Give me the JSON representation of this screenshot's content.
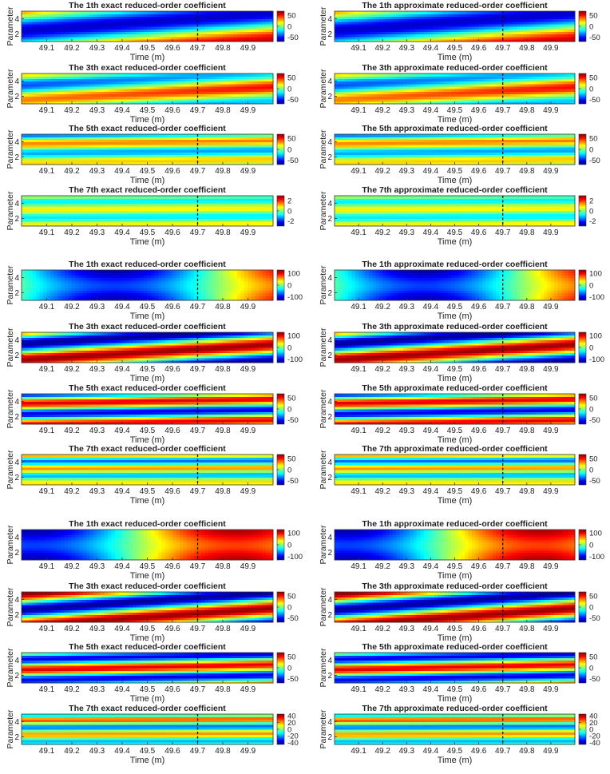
{
  "figure": {
    "colormap": "jet",
    "x_label": "Time (m)",
    "y_label": "Parameter",
    "x_ticks": [
      "49.1",
      "49.2",
      "49.3",
      "49.4",
      "49.5",
      "49.6",
      "49.7",
      "49.8",
      "49.9"
    ],
    "y_ticks": [
      "2",
      "4"
    ],
    "dashed_line_at": "49.7"
  },
  "chart_data": [
    {
      "type": "heatmap",
      "title": "The 1th exact reduced-order coefficient",
      "colorbar_ticks": [
        "50",
        "0",
        "-50"
      ],
      "clim": [
        -70,
        70
      ],
      "pattern": "diag1",
      "xlim": [
        49.0,
        50.0
      ],
      "ylim": [
        1,
        5
      ]
    },
    {
      "type": "heatmap",
      "title": "The 1th approximate reduced-order coefficient",
      "colorbar_ticks": [
        "50",
        "0",
        "-50"
      ],
      "clim": [
        -70,
        70
      ],
      "pattern": "diag1",
      "xlim": [
        49.0,
        50.0
      ],
      "ylim": [
        1,
        5
      ]
    },
    {
      "type": "heatmap",
      "title": "The 3th exact reduced-order coefficient",
      "colorbar_ticks": [
        "50",
        "0",
        "-50"
      ],
      "clim": [
        -70,
        70
      ],
      "pattern": "soft3",
      "xlim": [
        49.0,
        50.0
      ],
      "ylim": [
        1,
        5
      ]
    },
    {
      "type": "heatmap",
      "title": "The 3th approximate reduced-order coefficient",
      "colorbar_ticks": [
        "50",
        "0",
        "-50"
      ],
      "clim": [
        -70,
        70
      ],
      "pattern": "soft3",
      "xlim": [
        49.0,
        50.0
      ],
      "ylim": [
        1,
        5
      ]
    },
    {
      "type": "heatmap",
      "title": "The 5th exact reduced-order coefficient",
      "colorbar_ticks": [
        "50",
        "0",
        "-50"
      ],
      "clim": [
        -70,
        70
      ],
      "pattern": "band5",
      "xlim": [
        49.0,
        50.0
      ],
      "ylim": [
        1,
        5
      ]
    },
    {
      "type": "heatmap",
      "title": "The 5th approximate reduced-order coefficient",
      "colorbar_ticks": [
        "50",
        "0",
        "-50"
      ],
      "clim": [
        -70,
        70
      ],
      "pattern": "band5",
      "xlim": [
        49.0,
        50.0
      ],
      "ylim": [
        1,
        5
      ]
    },
    {
      "type": "heatmap",
      "title": "The 7th exact reduced-order coefficient",
      "colorbar_ticks": [
        "2",
        "0",
        "-2"
      ],
      "clim": [
        -3,
        3
      ],
      "pattern": "faint7",
      "xlim": [
        49.0,
        50.0
      ],
      "ylim": [
        1,
        5
      ]
    },
    {
      "type": "heatmap",
      "title": "The 7th approximate reduced-order coefficient",
      "colorbar_ticks": [
        "2",
        "0",
        "-2"
      ],
      "clim": [
        -3,
        3
      ],
      "pattern": "faint7",
      "xlim": [
        49.0,
        50.0
      ],
      "ylim": [
        1,
        5
      ]
    },
    {
      "type": "heatmap",
      "title": "The 1th exact reduced-order coefficient",
      "colorbar_ticks": [
        "100",
        "0",
        "-100"
      ],
      "clim": [
        -130,
        130
      ],
      "pattern": "wave_neg",
      "xlim": [
        49.0,
        50.0
      ],
      "ylim": [
        1,
        5
      ]
    },
    {
      "type": "heatmap",
      "title": "The 1th approximate reduced-order coefficient",
      "colorbar_ticks": [
        "100",
        "0",
        "-100"
      ],
      "clim": [
        -130,
        130
      ],
      "pattern": "wave_neg",
      "xlim": [
        49.0,
        50.0
      ],
      "ylim": [
        1,
        5
      ]
    },
    {
      "type": "heatmap",
      "title": "The 3th exact reduced-order coefficient",
      "colorbar_ticks": [
        "100",
        "0",
        "-100"
      ],
      "clim": [
        -130,
        130
      ],
      "pattern": "diag3",
      "xlim": [
        49.0,
        50.0
      ],
      "ylim": [
        1,
        5
      ]
    },
    {
      "type": "heatmap",
      "title": "The 3th approximate reduced-order coefficient",
      "colorbar_ticks": [
        "100",
        "0",
        "-100"
      ],
      "clim": [
        -130,
        130
      ],
      "pattern": "diag3",
      "xlim": [
        49.0,
        50.0
      ],
      "ylim": [
        1,
        5
      ]
    },
    {
      "type": "heatmap",
      "title": "The 5th exact reduced-order coefficient",
      "colorbar_ticks": [
        "50",
        "0",
        "-50"
      ],
      "clim": [
        -70,
        70
      ],
      "pattern": "diag5",
      "xlim": [
        49.0,
        50.0
      ],
      "ylim": [
        1,
        5
      ]
    },
    {
      "type": "heatmap",
      "title": "The 5th approximate reduced-order coefficient",
      "colorbar_ticks": [
        "50",
        "0",
        "-50"
      ],
      "clim": [
        -70,
        70
      ],
      "pattern": "diag5",
      "xlim": [
        49.0,
        50.0
      ],
      "ylim": [
        1,
        5
      ]
    },
    {
      "type": "heatmap",
      "title": "The 7th exact reduced-order coefficient",
      "colorbar_ticks": [
        "50",
        "0",
        "-50"
      ],
      "clim": [
        -70,
        70
      ],
      "pattern": "band7",
      "xlim": [
        49.0,
        50.0
      ],
      "ylim": [
        1,
        5
      ]
    },
    {
      "type": "heatmap",
      "title": "The 7th approximate reduced-order coefficient",
      "colorbar_ticks": [
        "50",
        "0",
        "-50"
      ],
      "clim": [
        -70,
        70
      ],
      "pattern": "band7",
      "xlim": [
        49.0,
        50.0
      ],
      "ylim": [
        1,
        5
      ]
    },
    {
      "type": "heatmap",
      "title": "The 1th exact reduced-order coefficient",
      "colorbar_ticks": [
        "100",
        "0",
        "-100"
      ],
      "clim": [
        -130,
        130
      ],
      "pattern": "wave_pos",
      "xlim": [
        49.0,
        50.0
      ],
      "ylim": [
        1,
        5
      ]
    },
    {
      "type": "heatmap",
      "title": "The 1th approximate reduced-order coefficient",
      "colorbar_ticks": [
        "100",
        "0",
        "-100"
      ],
      "clim": [
        -130,
        130
      ],
      "pattern": "wave_pos",
      "xlim": [
        49.0,
        50.0
      ],
      "ylim": [
        1,
        5
      ]
    },
    {
      "type": "heatmap",
      "title": "The 3th exact reduced-order coefficient",
      "colorbar_ticks": [
        "50",
        "0",
        "-50"
      ],
      "clim": [
        -70,
        70
      ],
      "pattern": "diag3b",
      "xlim": [
        49.0,
        50.0
      ],
      "ylim": [
        1,
        5
      ]
    },
    {
      "type": "heatmap",
      "title": "The 3th approximate reduced-order coefficient",
      "colorbar_ticks": [
        "50",
        "0",
        "-50"
      ],
      "clim": [
        -70,
        70
      ],
      "pattern": "diag3b",
      "xlim": [
        49.0,
        50.0
      ],
      "ylim": [
        1,
        5
      ]
    },
    {
      "type": "heatmap",
      "title": "The 5th exact reduced-order coefficient",
      "colorbar_ticks": [
        "50",
        "0",
        "-50"
      ],
      "clim": [
        -70,
        70
      ],
      "pattern": "diag5b",
      "xlim": [
        49.0,
        50.0
      ],
      "ylim": [
        1,
        5
      ]
    },
    {
      "type": "heatmap",
      "title": "The 5th approximate reduced-order coefficient",
      "colorbar_ticks": [
        "50",
        "0",
        "-50"
      ],
      "clim": [
        -70,
        70
      ],
      "pattern": "diag5b",
      "xlim": [
        49.0,
        50.0
      ],
      "ylim": [
        1,
        5
      ]
    },
    {
      "type": "heatmap",
      "title": "The 7th exact reduced-order coefficient",
      "colorbar_ticks": [
        "40",
        "20",
        "0",
        "-20",
        "-40"
      ],
      "clim": [
        -45,
        45
      ],
      "pattern": "band7b",
      "xlim": [
        49.0,
        50.0
      ],
      "ylim": [
        1,
        5
      ]
    },
    {
      "type": "heatmap",
      "title": "The 7th approximate reduced-order coefficient",
      "colorbar_ticks": [
        "40",
        "20",
        "0",
        "-20",
        "-40"
      ],
      "clim": [
        -45,
        45
      ],
      "pattern": "band7b",
      "xlim": [
        49.0,
        50.0
      ],
      "ylim": [
        1,
        5
      ]
    }
  ]
}
